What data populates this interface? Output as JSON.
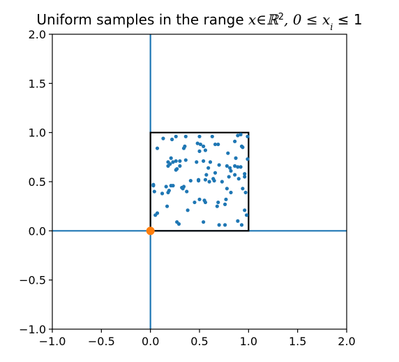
{
  "chart_data": {
    "type": "scatter",
    "title": {
      "prefix": "Uniform samples in the range ",
      "math": "x∈ℝ",
      "sup": "2",
      "math2": ", 0 ≤ x",
      "sub": "i",
      "math3": " ≤ 1"
    },
    "xlabel": "",
    "ylabel": "",
    "xlim": [
      -1.0,
      2.0
    ],
    "ylim": [
      -1.0,
      2.0
    ],
    "grid": false,
    "xticks": [
      "−1.0",
      "−0.5",
      "0.0",
      "0.5",
      "1.0",
      "1.5",
      "2.0"
    ],
    "yticks": [
      "−1.0",
      "−0.5",
      "0.0",
      "0.5",
      "1.0",
      "1.5",
      "2.0"
    ],
    "xtick_values": [
      -1.0,
      -0.5,
      0.0,
      0.5,
      1.0,
      1.5,
      2.0
    ],
    "ytick_values": [
      -1.0,
      -0.5,
      0.0,
      0.5,
      1.0,
      1.5,
      2.0
    ],
    "colors": {
      "samples": "#1f77b4",
      "axes_lines": "#1f77b4",
      "origin": "#ff7f0e",
      "box": "#000000"
    },
    "axis_lines": {
      "x": 0,
      "y": 0
    },
    "box": [
      [
        0,
        0
      ],
      [
        1,
        0
      ],
      [
        1,
        1
      ],
      [
        0,
        1
      ],
      [
        0,
        0
      ]
    ],
    "origin": [
      0,
      0
    ],
    "samples": {
      "x": [
        0.26,
        0.36,
        0.5,
        0.63,
        0.89,
        0.92,
        0.99,
        0.07,
        0.13,
        0.22,
        0.34,
        0.35,
        0.48,
        0.51,
        0.54,
        0.66,
        0.69,
        0.86,
        0.94,
        0.2,
        0.36,
        0.5,
        0.56,
        0.79,
        0.87,
        0.93,
        0.18,
        0.21,
        0.26,
        0.3,
        0.47,
        0.54,
        0.61,
        0.7,
        0.99,
        0.18,
        0.23,
        0.3,
        0.59,
        0.66,
        0.78,
        0.81,
        0.86,
        0.89,
        0.92,
        0.26,
        0.27,
        0.57,
        0.64,
        0.82,
        0.86,
        0.96,
        0.16,
        0.21,
        0.34,
        0.41,
        0.49,
        0.6,
        0.78,
        0.82,
        0.94,
        0.03,
        0.03,
        0.12,
        0.19,
        0.23,
        0.33,
        0.32,
        0.49,
        0.56,
        0.65,
        0.73,
        0.8,
        0.9,
        0.96,
        0.04,
        0.18,
        0.37,
        0.5,
        0.55,
        0.69,
        0.77,
        0.97,
        0.17,
        0.38,
        0.45,
        0.56,
        0.68,
        0.76,
        0.96,
        0.98,
        0.05,
        0.07,
        0.27,
        0.29,
        0.54,
        0.7,
        0.76,
        0.89,
        0.93
      ],
      "y": [
        0.96,
        0.96,
        0.96,
        0.96,
        0.97,
        0.98,
        0.96,
        0.84,
        0.94,
        0.93,
        0.84,
        0.86,
        0.89,
        0.88,
        0.86,
        0.88,
        0.88,
        0.91,
        0.85,
        0.68,
        0.72,
        0.81,
        0.82,
        0.79,
        0.74,
        0.86,
        0.7,
        0.74,
        0.71,
        0.71,
        0.7,
        0.71,
        0.7,
        0.67,
        0.73,
        0.66,
        0.7,
        0.66,
        0.64,
        0.59,
        0.66,
        0.64,
        0.66,
        0.65,
        0.65,
        0.62,
        0.63,
        0.57,
        0.53,
        0.61,
        0.57,
        0.58,
        0.45,
        0.46,
        0.45,
        0.51,
        0.51,
        0.5,
        0.43,
        0.39,
        0.43,
        0.46,
        0.47,
        0.38,
        0.41,
        0.46,
        0.43,
        0.44,
        0.52,
        0.52,
        0.51,
        0.5,
        0.55,
        0.53,
        0.55,
        0.4,
        0.39,
        0.4,
        0.32,
        0.31,
        0.29,
        0.32,
        0.39,
        0.25,
        0.21,
        0.29,
        0.29,
        0.25,
        0.27,
        0.21,
        0.16,
        0.16,
        0.18,
        0.09,
        0.07,
        0.09,
        0.06,
        0.06,
        0.1,
        0.06
      ]
    }
  }
}
